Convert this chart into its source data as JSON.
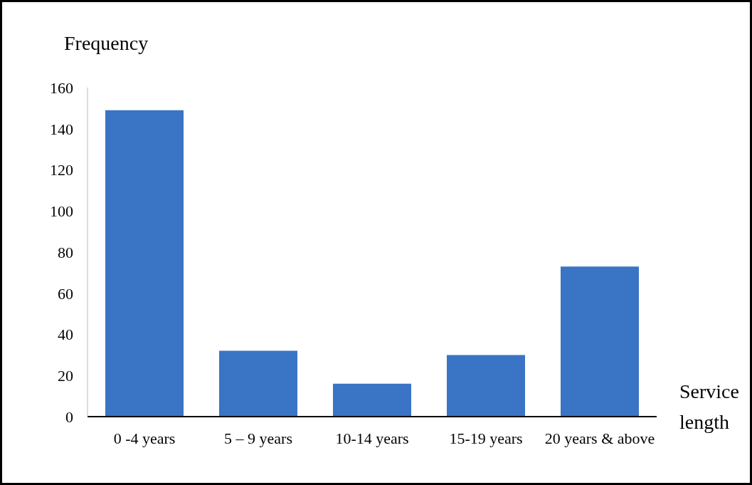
{
  "chart_data": {
    "type": "bar",
    "xlabel": "Service length",
    "ylabel": "Frequency",
    "categories": [
      "0 -4 years",
      "5 – 9 years",
      "10-14 years",
      "15-19 years",
      "20 years & above"
    ],
    "values": [
      149,
      32,
      16,
      30,
      73
    ],
    "color": "#3a74c4",
    "ylim": [
      0,
      160
    ],
    "yticks": [
      0,
      20,
      40,
      60,
      80,
      100,
      120,
      140,
      160
    ]
  }
}
